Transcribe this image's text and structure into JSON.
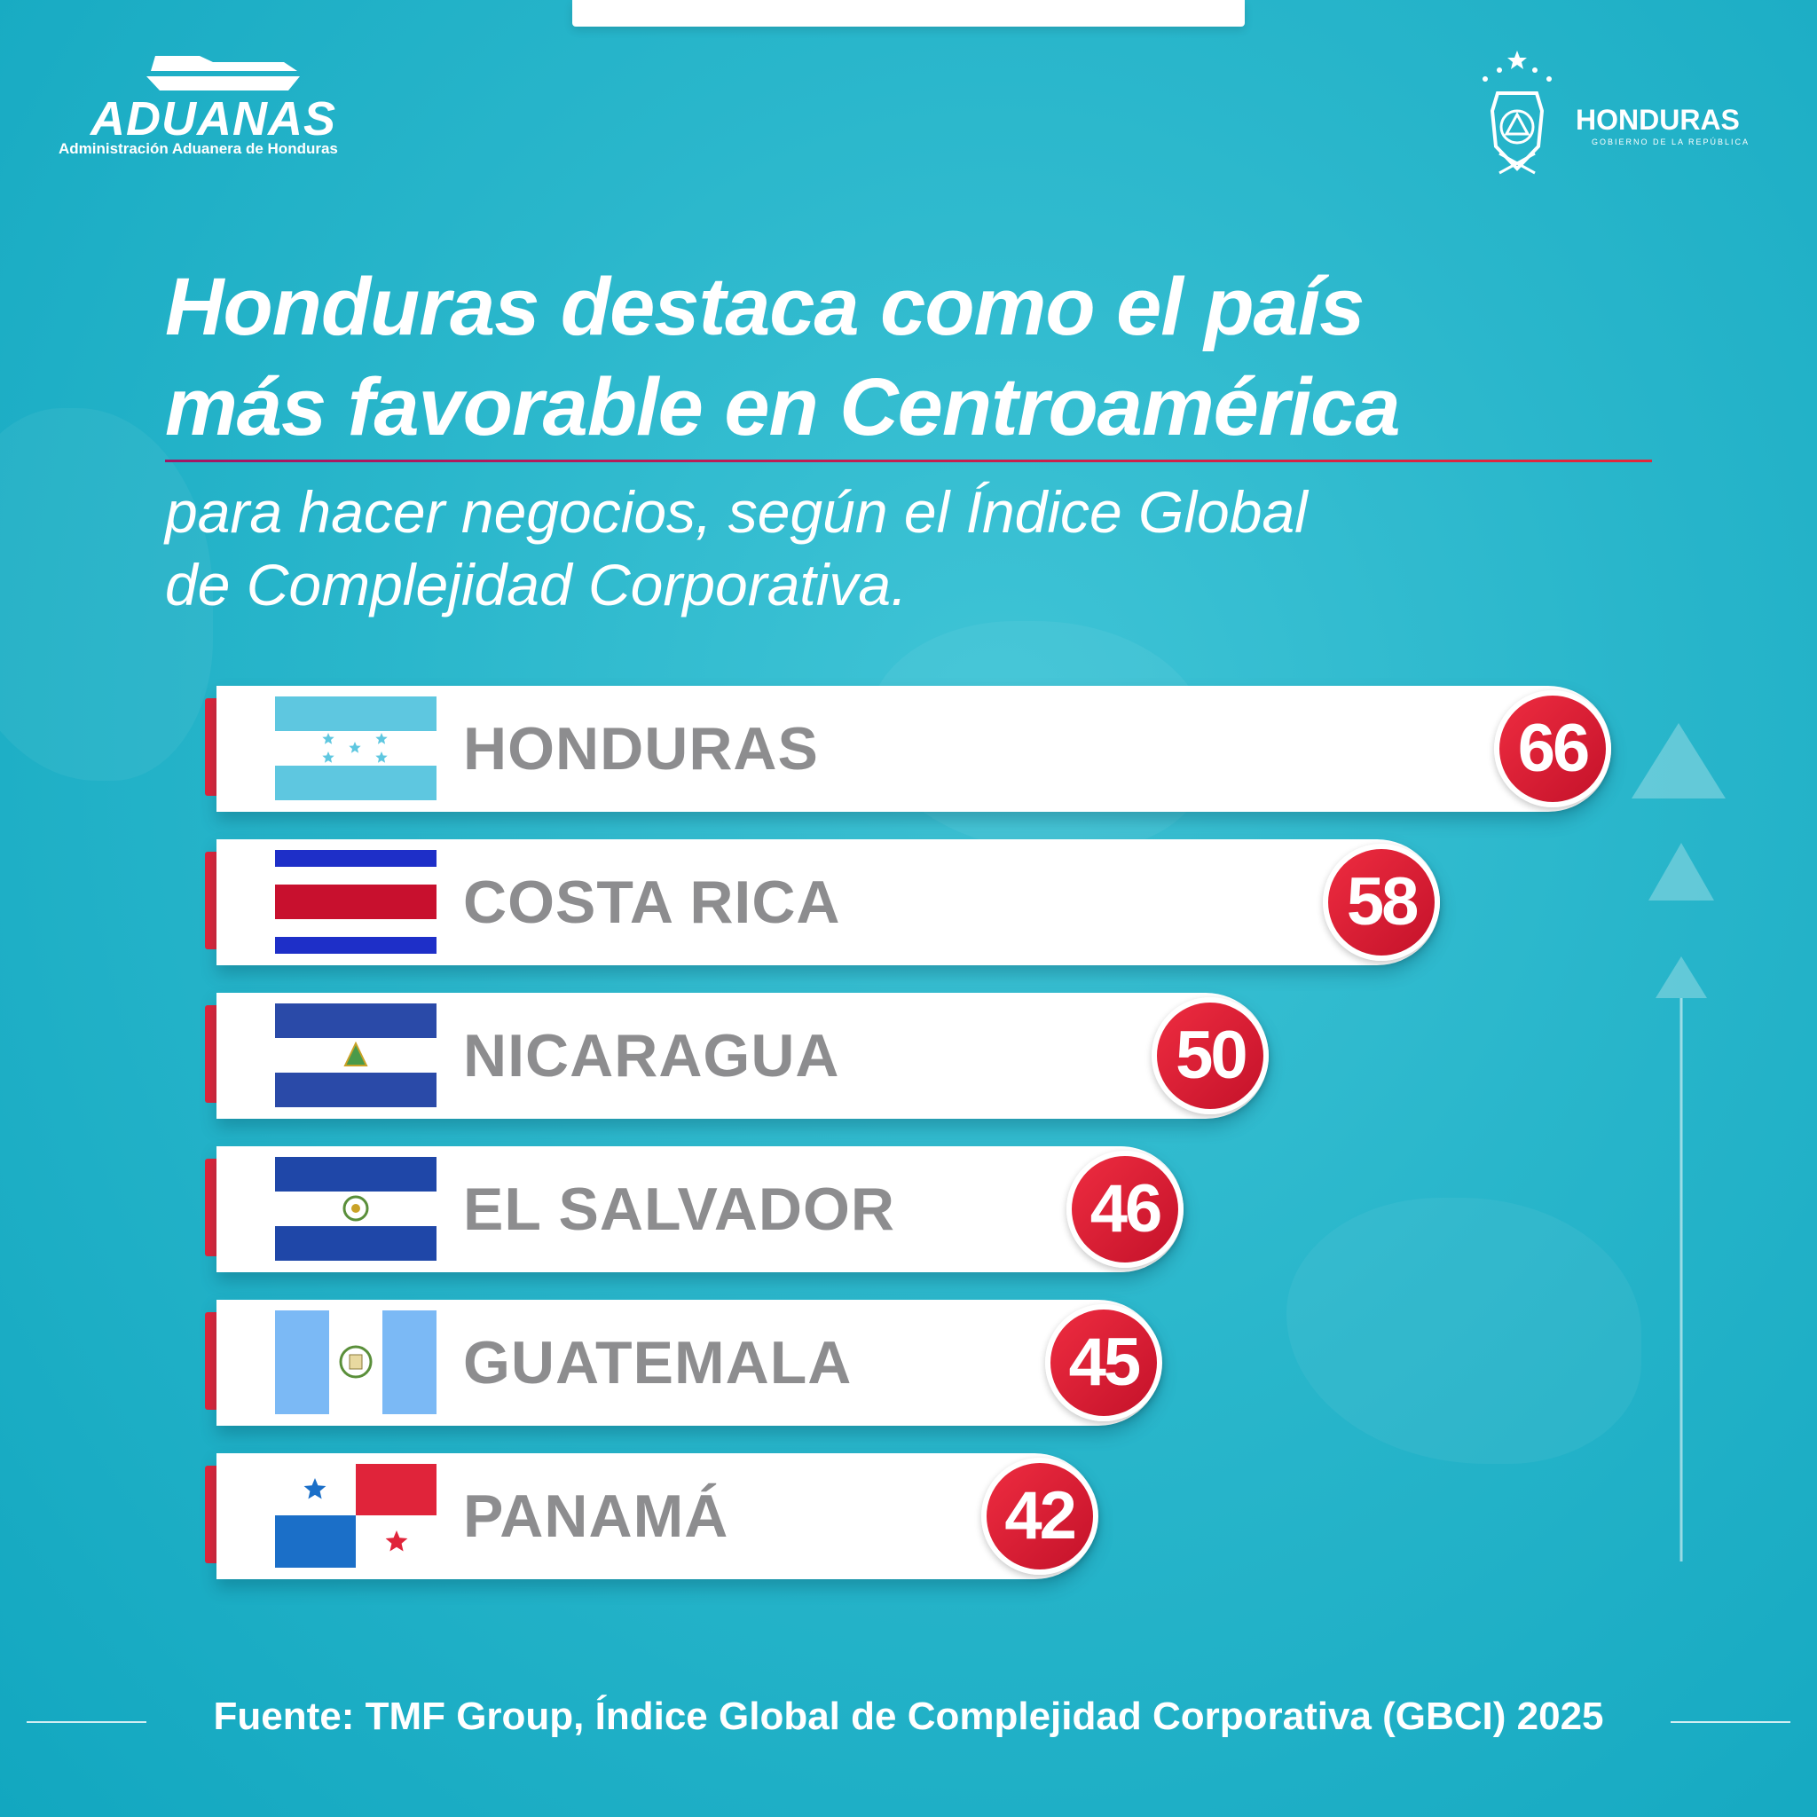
{
  "header": {
    "left_logo": {
      "brand": "ADUANAS",
      "subtitle": "Administración Aduanera de Honduras"
    },
    "right_logo": {
      "brand": "HONDURAS",
      "subtitle": "GOBIERNO DE LA REPÚBLICA"
    }
  },
  "title_lines": [
    "Honduras destaca como el país",
    "más favorable en Centroamérica"
  ],
  "subtitle_lines": [
    "para hacer negocios, según el Índice Global",
    "de Complejidad Corporativa."
  ],
  "chart_data": {
    "type": "bar",
    "orientation": "horizontal",
    "categories": [
      "HONDURAS",
      "COSTA RICA",
      "NICARAGUA",
      "EL SALVADOR",
      "GUATEMALA",
      "PANAMÁ"
    ],
    "values": [
      66,
      58,
      50,
      46,
      45,
      42
    ],
    "flags": [
      "honduras",
      "costa-rica",
      "nicaragua",
      "el-salvador",
      "guatemala",
      "panama"
    ]
  },
  "source": "Fuente: TMF Group, Índice Global de Complejidad Corporativa (GBCI) 2025",
  "colors": {
    "accent_red": "#e0243a",
    "background_teal": "#29b6cb",
    "label_gray": "#8d8d8f"
  }
}
